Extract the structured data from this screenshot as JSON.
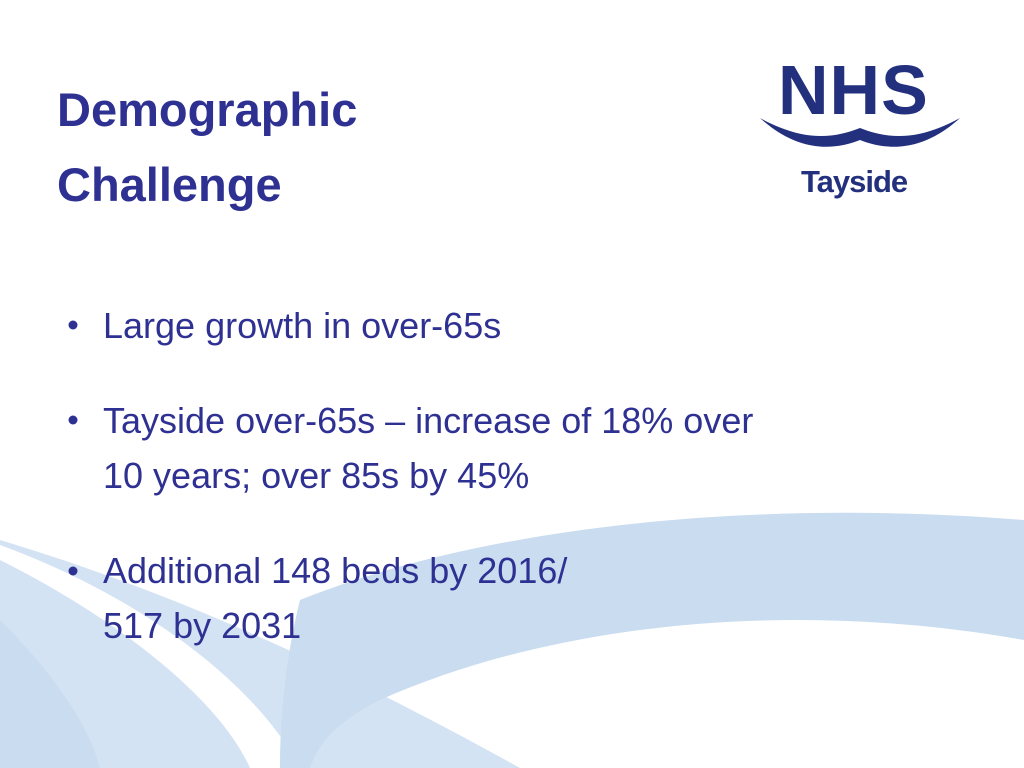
{
  "title": {
    "lines": [
      "Demographic",
      "Challenge"
    ]
  },
  "logo": {
    "brand": "NHS",
    "region": "Tayside"
  },
  "bullets": [
    {
      "lines": [
        "Large growth in over-65s"
      ]
    },
    {
      "lines": [
        "Tayside over-65s – increase of 18% over",
        "10 years; over 85s by 45%"
      ]
    },
    {
      "lines": [
        "Additional 148 beds by 2016/",
        "517 by 2031"
      ]
    }
  ]
}
